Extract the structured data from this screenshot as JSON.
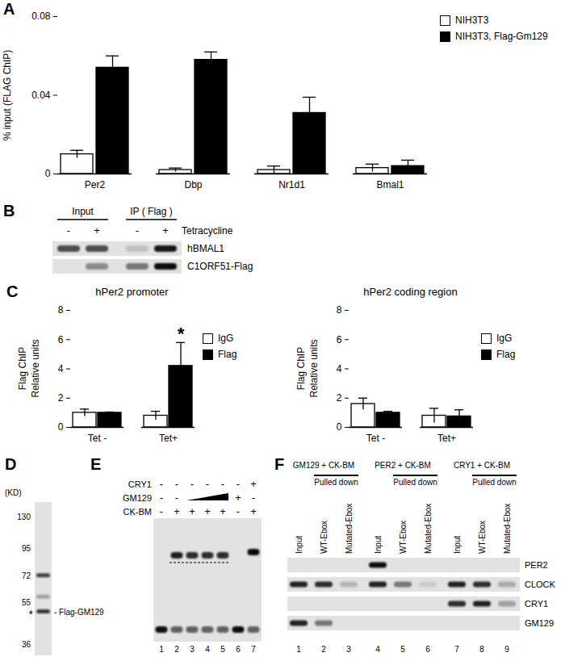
{
  "chart_data": [
    {
      "panel": "A",
      "type": "bar",
      "ylabel": "% input (FLAG ChIP)",
      "categories": [
        "Per2",
        "Dbp",
        "Nr1d1",
        "Bmal1"
      ],
      "series": [
        {
          "name": "NIH3T3",
          "color": "#ffffff",
          "values": [
            0.01,
            0.002,
            0.002,
            0.003
          ],
          "errors": [
            0.002,
            0.001,
            0.002,
            0.002
          ]
        },
        {
          "name": "NIH3T3, Flag-Gm129",
          "color": "#000000",
          "values": [
            0.054,
            0.058,
            0.031,
            0.004
          ],
          "errors": [
            0.006,
            0.004,
            0.008,
            0.003
          ]
        }
      ],
      "ylim": [
        0,
        0.08
      ],
      "yticks": [
        0,
        0.04,
        0.08
      ],
      "legend": "top-right"
    },
    {
      "panel": "C",
      "type": "bar",
      "title": "hPer2 promoter",
      "ylabel": [
        "Flag ChIP",
        "Relative units"
      ],
      "categories": [
        "Tet -",
        "Tet+"
      ],
      "series": [
        {
          "name": "IgG",
          "color": "#ffffff",
          "values": [
            1.0,
            0.8
          ],
          "errors": [
            0.25,
            0.3
          ]
        },
        {
          "name": "Flag",
          "color": "#000000",
          "values": [
            1.0,
            4.2
          ],
          "errors": [
            0.05,
            1.6
          ]
        }
      ],
      "ylim": [
        0,
        8
      ],
      "yticks": [
        0,
        2,
        4,
        6,
        8
      ],
      "legend": "right",
      "annotations": [
        {
          "text": "*",
          "category": "Tet+",
          "series": "Flag"
        }
      ]
    },
    {
      "type": "bar",
      "title": "hPer2 coding region",
      "ylabel": [
        "Flag ChIP",
        "Relative units"
      ],
      "categories": [
        "Tet -",
        "Tet+"
      ],
      "series": [
        {
          "name": "IgG",
          "color": "#ffffff",
          "values": [
            1.6,
            0.8
          ],
          "errors": [
            0.4,
            0.5
          ]
        },
        {
          "name": "Flag",
          "color": "#000000",
          "values": [
            1.0,
            0.75
          ],
          "errors": [
            0.1,
            0.45
          ]
        }
      ],
      "ylim": [
        0,
        8
      ],
      "yticks": [
        0,
        2,
        4,
        6,
        8
      ],
      "legend": "right"
    }
  ],
  "blots": {
    "B": {
      "panel": "B",
      "column_groups": [
        {
          "label": "Input",
          "lanes": [
            1,
            2
          ]
        },
        {
          "label": "IP ( Flag )",
          "lanes": [
            3,
            4
          ]
        }
      ],
      "treatment": {
        "label": "Tetracycline",
        "signs": [
          "-",
          "+",
          "-",
          "+"
        ]
      },
      "rows": [
        {
          "label": "hBMAL1",
          "bands": [
            0.7,
            0.7,
            0.15,
            0.95
          ]
        },
        {
          "label": "C1ORF51-Flag",
          "bands": [
            0,
            0.4,
            0.5,
            1.0
          ]
        }
      ]
    },
    "D": {
      "panel": "D",
      "unit_label": "(KD)",
      "markers": [
        130,
        95,
        72,
        55,
        36
      ],
      "bands": [
        {
          "kd": 72,
          "intensity": 0.75
        },
        {
          "kd": 58,
          "intensity": 0.3
        },
        {
          "kd": 50,
          "intensity": 0.8
        }
      ],
      "annotations": [
        {
          "kd": 50,
          "mark": "*",
          "label": "- Flag-GM129"
        }
      ]
    },
    "E": {
      "panel": "E",
      "rows": [
        {
          "label": "CRY1",
          "signs": [
            "-",
            "-",
            "-",
            "-",
            "-",
            "-",
            "+"
          ]
        },
        {
          "label": "GM129",
          "signs": [
            "-",
            "-",
            null,
            null,
            null,
            "+",
            "-"
          ],
          "ramp": [
            3,
            5
          ]
        },
        {
          "label": "CK-BM",
          "signs": [
            "-",
            "+",
            "+",
            "+",
            "+",
            "-",
            "+"
          ]
        }
      ],
      "complex_band": [
        0,
        0.9,
        0.85,
        0.85,
        0.85,
        0,
        1.0
      ],
      "free_probe": [
        1.0,
        0.6,
        0.6,
        0.6,
        0.6,
        1.0,
        0.6
      ],
      "lane_numbers": [
        1,
        2,
        3,
        4,
        5,
        6,
        7
      ]
    },
    "F": {
      "panel": "F",
      "groups": [
        {
          "label": "GM129 + CK-BM",
          "bracket": "Pulled down",
          "lanes": [
            "Input",
            "WT-Ebox",
            "Mutated-Ebox"
          ]
        },
        {
          "label": "PER2 + CK-BM",
          "bracket": "Pulled down",
          "lanes": [
            "Input",
            "WT-Ebox",
            "Mutated-Ebox"
          ]
        },
        {
          "label": "CRY1 + CK-BM",
          "bracket": "Pulled down",
          "lanes": [
            "Input",
            "WT-Ebox",
            "Mutated-Ebox"
          ]
        }
      ],
      "rows": [
        {
          "label": "PER2",
          "bands": [
            0,
            0,
            0,
            1.0,
            0,
            0,
            0,
            0,
            0
          ]
        },
        {
          "label": "CLOCK",
          "bands": [
            0.9,
            0.85,
            0.2,
            0.9,
            0.5,
            0.1,
            0.9,
            0.85,
            0.25
          ]
        },
        {
          "label": "CRY1",
          "bands": [
            0,
            0,
            0,
            0,
            0,
            0,
            0.85,
            0.9,
            0.3
          ]
        },
        {
          "label": "GM129",
          "bands": [
            0.9,
            0.5,
            0,
            0,
            0,
            0,
            0,
            0,
            0
          ]
        }
      ],
      "lane_numbers": [
        1,
        2,
        3,
        4,
        5,
        6,
        7,
        8,
        9
      ]
    }
  }
}
